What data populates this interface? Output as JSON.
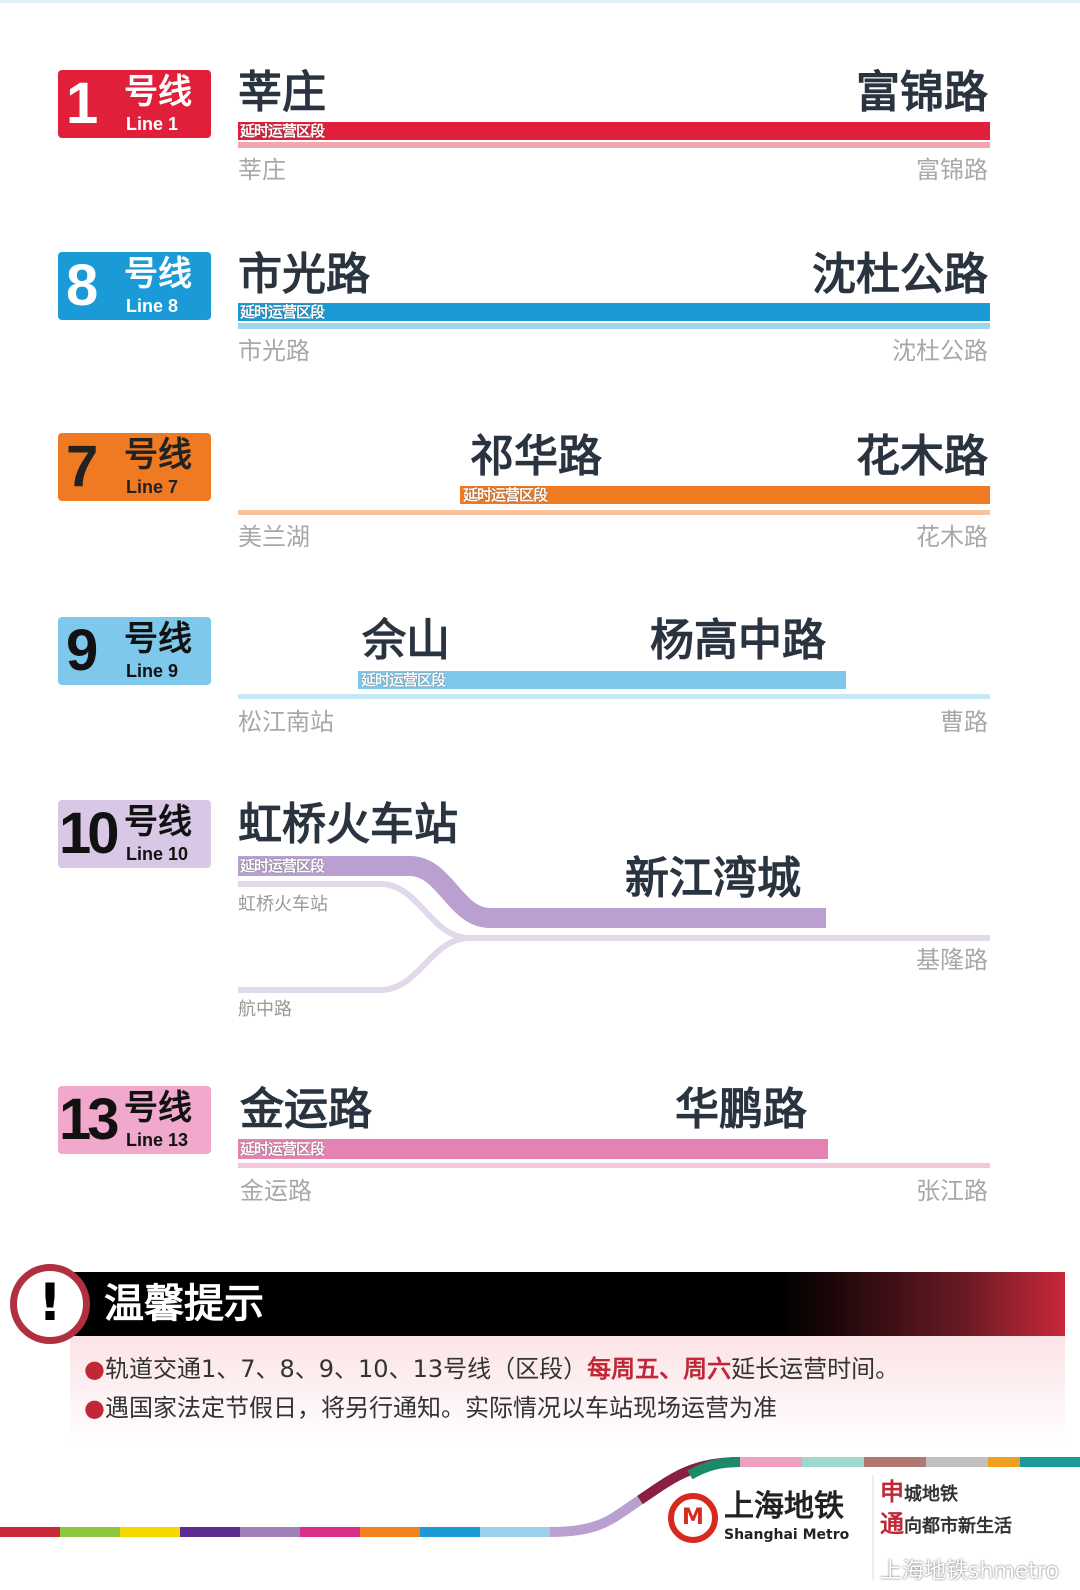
{
  "segment_label": "延时运营区段",
  "lines": [
    {
      "id": "line1",
      "number": "1",
      "suffix": "号线",
      "en": "Line 1",
      "color": "#e0203a",
      "light": "#f2a6b2",
      "start": "莘庄",
      "end": "富锦路",
      "terminal_start": "莘庄",
      "terminal_end": "富锦路"
    },
    {
      "id": "line8",
      "number": "8",
      "suffix": "号线",
      "en": "Line 8",
      "color": "#1a9ad6",
      "light": "#9fd6ef",
      "start": "市光路",
      "end": "沈杜公路",
      "terminal_start": "市光路",
      "terminal_end": "沈杜公路"
    },
    {
      "id": "line7",
      "number": "7",
      "suffix": "号线",
      "en": "Line 7",
      "color": "#f07a22",
      "light": "#f8c29c",
      "start": "祁华路",
      "end": "花木路",
      "terminal_start": "美兰湖",
      "terminal_end": "花木路"
    },
    {
      "id": "line9",
      "number": "9",
      "suffix": "号线",
      "en": "Line 9",
      "color": "#7ec8ec",
      "light": "#c6e7f6",
      "start": "佘山",
      "end": "杨高中路",
      "terminal_start": "松江南站",
      "terminal_end": "曹路"
    },
    {
      "id": "line10",
      "number": "10",
      "suffix": "号线",
      "en": "Line 10",
      "color": "#b9a0d0",
      "light": "#e2d8ec",
      "start": "虹桥火车站",
      "end": "新江湾城",
      "terminal_start": "虹桥火车站",
      "terminal_branch": "航中路",
      "terminal_end": "基隆路"
    },
    {
      "id": "line13",
      "number": "13",
      "suffix": "号线",
      "en": "Line 13",
      "color": "#e582b4",
      "light": "#f4c6dc",
      "start": "金运路",
      "end": "华鹏路",
      "terminal_start": "金运路",
      "terminal_end": "张江路"
    }
  ],
  "notice": {
    "title": "温馨提示",
    "line1_a": "轨道交通1、7、8、9、10、13号线（区段）",
    "line1_hl": "每周五、周六",
    "line1_b": "延长运营时间。",
    "line2": "遇国家法定节假日，将另行通知。实际情况以车站现场运营为准"
  },
  "footer": {
    "logo_cn": "上海地铁",
    "logo_en": "Shanghai Metro",
    "slogan1_hl": "申",
    "slogan1": "城地铁",
    "slogan2_hl": "通",
    "slogan2": "向都市新生活",
    "watermark": "上海地铁shmetro"
  }
}
